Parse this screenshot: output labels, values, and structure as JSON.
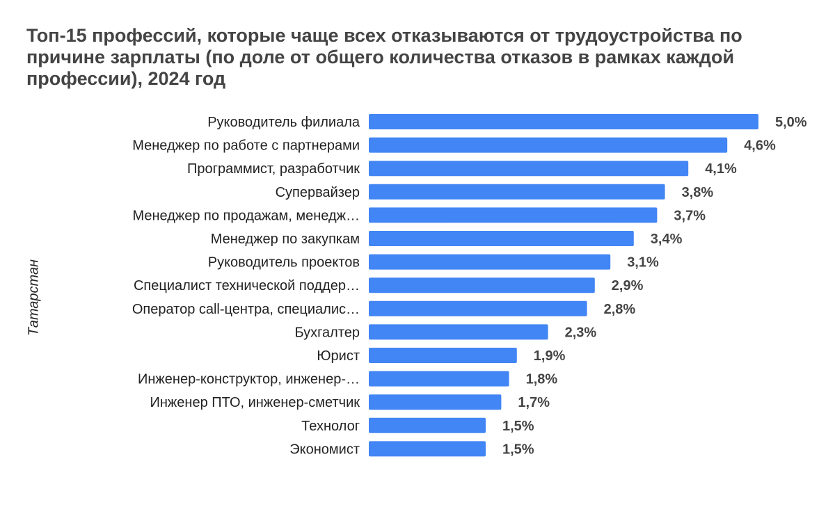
{
  "chart_data": {
    "type": "bar",
    "orientation": "horizontal",
    "title": "Топ-15 профессий, которые чаще всех отказываются от трудоустройства по причине зарплаты (по доле от общего количества отказов в рамках каждой профессии), 2024 год",
    "ylabel": "Татарстан",
    "xlabel": "",
    "bar_color": "#4285F4",
    "grid": false,
    "legend": "none",
    "xlim": [
      0,
      5
    ],
    "categories": [
      "Руководитель филиала",
      "Менеджер по работе с партнерами",
      "Программист, разработчик",
      "Супервайзер",
      "Менеджер по продажам, менедж…",
      "Менеджер по закупкам",
      "Руководитель проектов",
      "Специалист технической поддер…",
      "Оператор call-центра, специалис…",
      "Бухгалтер",
      "Юрист",
      "Инженер-конструктор, инженер-…",
      "Инженер ПТО, инженер-сметчик",
      "Технолог",
      "Экономист"
    ],
    "values": [
      5.0,
      4.6,
      4.1,
      3.8,
      3.7,
      3.4,
      3.1,
      2.9,
      2.8,
      2.3,
      1.9,
      1.8,
      1.7,
      1.5,
      1.5
    ],
    "value_labels": [
      "5,0%",
      "4,6%",
      "4,1%",
      "3,8%",
      "3,7%",
      "3,4%",
      "3,1%",
      "2,9%",
      "2,8%",
      "2,3%",
      "1,9%",
      "1,8%",
      "1,7%",
      "1,5%",
      "1,5%"
    ]
  }
}
